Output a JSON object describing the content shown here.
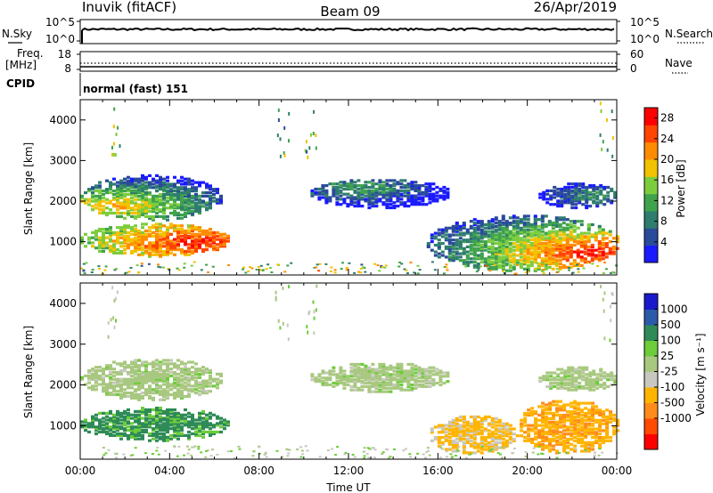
{
  "header": {
    "station": "Inuvik (fitACF)",
    "beam": "Beam 09",
    "date": "26/Apr/2019"
  },
  "top_panels": {
    "nsky_label": "N.Sky",
    "nsky_ticks": [
      "10^5",
      "10^0"
    ],
    "nsearch_label": "N.Search",
    "nsearch_ticks": [
      "10^5",
      "10^0"
    ],
    "freq_label_1": "Freq.",
    "freq_label_2": "[MHz]",
    "freq_ticks": [
      "18",
      "8"
    ],
    "nave_label": "Nave",
    "nave_ticks": [
      "60",
      "0"
    ],
    "cpid_label": "CPID",
    "cpid_value": "normal (fast) 151"
  },
  "colors": {
    "power_scale": [
      "#1a1aff",
      "#2a4a9a",
      "#2e7d6e",
      "#3fa34d",
      "#7ccd3e",
      "#f2c200",
      "#ff8c00",
      "#ff4500",
      "#ff0000"
    ],
    "velocity_scale": [
      "#ff0000",
      "#ff4a00",
      "#ff8c1a",
      "#ffb400",
      "#c8c8c0",
      "#a8c880",
      "#6ccc3a",
      "#2e8b57",
      "#2b5aa8",
      "#1a1acc"
    ]
  },
  "chart_data": [
    {
      "type": "heatmap",
      "panel": "power",
      "xlabel": "",
      "ylabel": "Slant Range [km]",
      "xlim": [
        "00:00",
        "00:00"
      ],
      "ylim": [
        180,
        4500
      ],
      "y_ticks": [
        "1000",
        "2000",
        "3000",
        "4000"
      ],
      "colorbar_label": "Power [dB]",
      "colorbar_ticks": [
        "4",
        "8",
        "12",
        "16",
        "20",
        "24",
        "28"
      ],
      "colorbar_range": [
        0,
        30
      ],
      "regions": [
        {
          "t": [
            0.0,
            6.6
          ],
          "r": [
            600,
            1400
          ],
          "peak_t": 5.0,
          "peak_r": 950,
          "max": 28
        },
        {
          "t": [
            0.0,
            6.3
          ],
          "r": [
            1500,
            2600
          ],
          "peak_t": 1.5,
          "peak_r": 1850,
          "max": 20
        },
        {
          "t": [
            10.3,
            16.5
          ],
          "r": [
            1800,
            2500
          ],
          "peak_t": 12.5,
          "peak_r": 2300,
          "max": 12
        },
        {
          "t": [
            15.5,
            24.0
          ],
          "r": [
            250,
            1600
          ],
          "peak_t": 23.0,
          "peak_r": 700,
          "max": 28
        },
        {
          "t": [
            20.5,
            24.0
          ],
          "r": [
            1800,
            2400
          ],
          "peak_t": 23.0,
          "peak_r": 2100,
          "max": 10
        }
      ]
    },
    {
      "type": "heatmap",
      "panel": "velocity",
      "xlabel": "Time UT",
      "ylabel": "Slant Range [km]",
      "x_ticks": [
        "00:00",
        "04:00",
        "08:00",
        "12:00",
        "16:00",
        "20:00",
        "00:00"
      ],
      "ylim": [
        180,
        4500
      ],
      "y_ticks": [
        "1000",
        "2000",
        "3000",
        "4000"
      ],
      "colorbar_label": "Velocity [m s⁻¹]",
      "colorbar_ticks": [
        "1000",
        "500",
        "100",
        "25",
        "-25",
        "-100",
        "-500",
        "-1000"
      ],
      "regions": [
        {
          "t": [
            0.0,
            6.6
          ],
          "r": [
            600,
            1400
          ],
          "vel": 150
        },
        {
          "t": [
            0.0,
            6.3
          ],
          "r": [
            1600,
            2600
          ],
          "vel": 0
        },
        {
          "t": [
            10.3,
            16.5
          ],
          "r": [
            1800,
            2500
          ],
          "vel": 0
        },
        {
          "t": [
            15.5,
            19.5
          ],
          "r": [
            300,
            1200
          ],
          "vel": -150
        },
        {
          "t": [
            19.5,
            24.0
          ],
          "r": [
            300,
            1600
          ],
          "vel": -400
        },
        {
          "t": [
            20.5,
            24.0
          ],
          "r": [
            1800,
            2400
          ],
          "vel": 0
        }
      ]
    }
  ]
}
